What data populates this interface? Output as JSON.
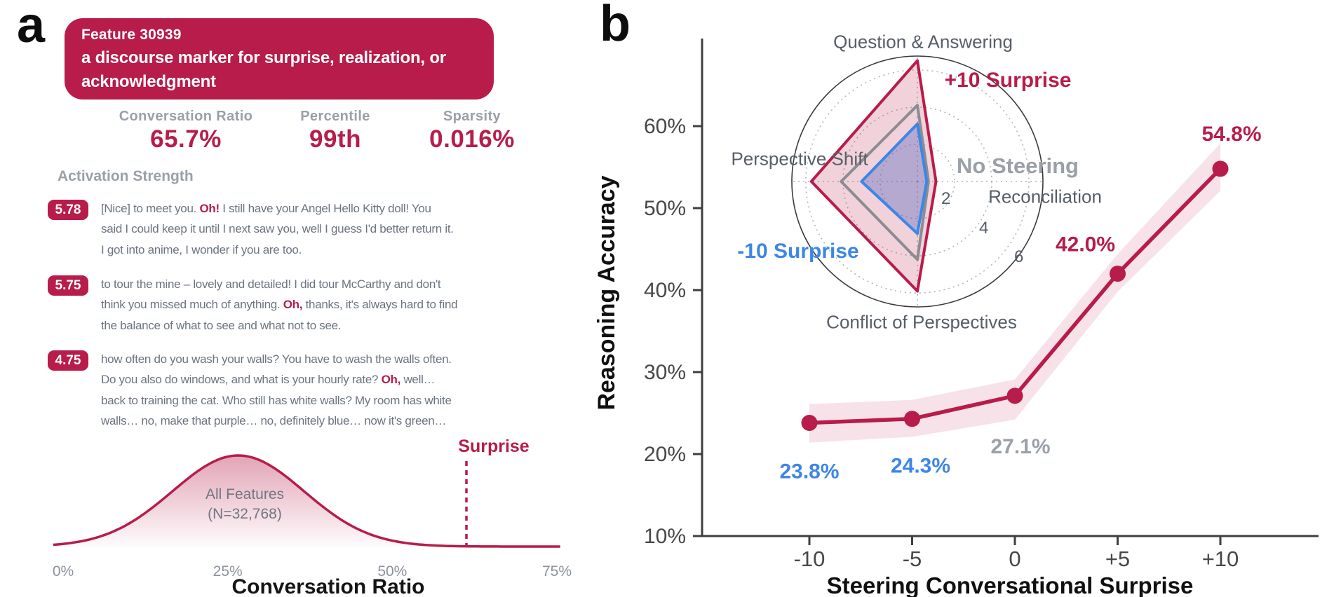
{
  "colors": {
    "crimson": "#b71c4a",
    "blue": "#3d86e6",
    "gray": "#9aa0a8",
    "gray_dark": "#8a8d92",
    "axis": "#3f3f3f",
    "tick_text": "#474747"
  },
  "panel_a": {
    "label": "a",
    "feature_card": {
      "feature_id": "Feature 30939",
      "description": "a discourse marker for surprise, realization, or acknowledgment"
    },
    "stats": [
      {
        "label": "Conversation Ratio",
        "value": "65.7%"
      },
      {
        "label": "Percentile",
        "value": "99th"
      },
      {
        "label": "Sparsity",
        "value": "0.016%"
      }
    ],
    "activation_header": "Activation Strength",
    "examples": [
      {
        "score": "5.78",
        "lines": [
          {
            "pre": "[Nice] to meet you. ",
            "hl": "Oh!",
            "post": " I still have your Angel Hello Kitty doll! You"
          },
          {
            "pre": "said I could keep it until I next saw you, well I guess I'd better return it.",
            "hl": "",
            "post": ""
          },
          {
            "pre": "I got into anime, I wonder if you are too.",
            "hl": "",
            "post": ""
          }
        ]
      },
      {
        "score": "5.75",
        "lines": [
          {
            "pre": "to tour the mine – lovely and detailed! I did tour McCarthy and don't",
            "hl": "",
            "post": ""
          },
          {
            "pre": "think you missed much of anything. ",
            "hl": "Oh,",
            "post": " thanks, it's always hard to find"
          },
          {
            "pre": "the balance of what to see and what not to see.",
            "hl": "",
            "post": ""
          }
        ]
      },
      {
        "score": "4.75",
        "lines": [
          {
            "pre": "how often do you wash your walls? You have to wash the walls often.",
            "hl": "",
            "post": ""
          },
          {
            "pre": "Do you also do windows, and what is your hourly rate? ",
            "hl": "Oh,",
            "post": " well…"
          },
          {
            "pre": "back to training the cat. Who still has white walls? My room has white",
            "hl": "",
            "post": ""
          },
          {
            "pre": "walls… no, make that purple… no, definitely blue… now it's green…",
            "hl": "",
            "post": ""
          }
        ]
      }
    ]
  },
  "panel_b": {
    "label": "b",
    "radar_labels": {
      "top": "Question & Answering",
      "plus10": "+10 Surprise",
      "left": "Perspective Shift",
      "no_steering": "No Steering",
      "right_axis": "Reconciliation",
      "minus10": "-10 Surprise",
      "bottom": "Conflict of Perspectives"
    }
  },
  "chart_data": [
    {
      "type": "area",
      "title": "Conversation Ratio",
      "xlabel": "Conversation Ratio",
      "xlim": [
        0,
        75
      ],
      "x_ticks": [
        {
          "percent": 0,
          "label": "0%"
        },
        {
          "percent": 25,
          "label": "25%"
        },
        {
          "percent": 50,
          "label": "50%"
        },
        {
          "percent": 75,
          "label": "75%"
        }
      ],
      "curve": {
        "center_percent": 26.6,
        "sd_percent": 10
      },
      "annotation": {
        "line1": "All Features",
        "line2": "(N=32,768)"
      },
      "marker": {
        "label": "Surprise",
        "value_percent": 65.7
      }
    },
    {
      "type": "line",
      "x": [
        -10,
        -5,
        0,
        5,
        10
      ],
      "x_tick_labels": [
        "-10",
        "-5",
        "0",
        "+5",
        "+10"
      ],
      "values": [
        23.8,
        24.3,
        27.1,
        42.0,
        54.8
      ],
      "point_labels": [
        "23.8%",
        "24.3%",
        "27.1%",
        "42.0%",
        "54.8%"
      ],
      "point_label_colors": [
        "blue",
        "blue",
        "gray",
        "crimson",
        "crimson"
      ],
      "band_upper": [
        26.1,
        26.6,
        29.1,
        44.4,
        57.9
      ],
      "band_lower": [
        21.4,
        22.1,
        24.2,
        39.8,
        52.1
      ],
      "y_ticks": [
        10,
        20,
        30,
        40,
        50,
        60
      ],
      "y_tick_labels": [
        "10%",
        "20%",
        "30%",
        "40%",
        "50%",
        "60%"
      ],
      "ylim": [
        10,
        65
      ],
      "xlabel": "Steering Conversational Surprise",
      "ylabel": "Reasoning Accuracy",
      "grid": false,
      "legend_position": "none"
    },
    {
      "type": "radar",
      "axes": [
        "Question & Answering",
        "Reconciliation",
        "Conflict of Perspectives",
        "Perspective Shift"
      ],
      "ring_values": [
        2,
        4,
        6
      ],
      "ring_labels": [
        "2",
        "4",
        "6"
      ],
      "scale_max": 6.75,
      "series": [
        {
          "name": "+10 Surprise",
          "color": "crimson",
          "values": [
            6.5,
            1.0,
            5.9,
            5.7
          ]
        },
        {
          "name": "No Steering",
          "color": "gray_dark",
          "values": [
            4.1,
            0.6,
            4.2,
            4.1
          ]
        },
        {
          "name": "-10 Surprise",
          "color": "blue",
          "values": [
            3.1,
            0.5,
            2.8,
            3.0
          ]
        }
      ]
    }
  ]
}
